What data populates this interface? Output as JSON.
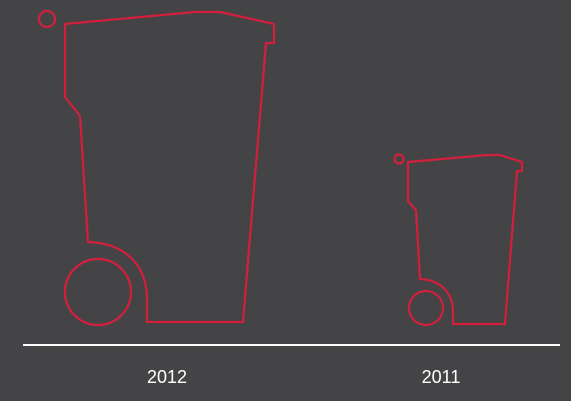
{
  "items": [
    {
      "label": "2012"
    },
    {
      "label": "2011"
    }
  ]
}
